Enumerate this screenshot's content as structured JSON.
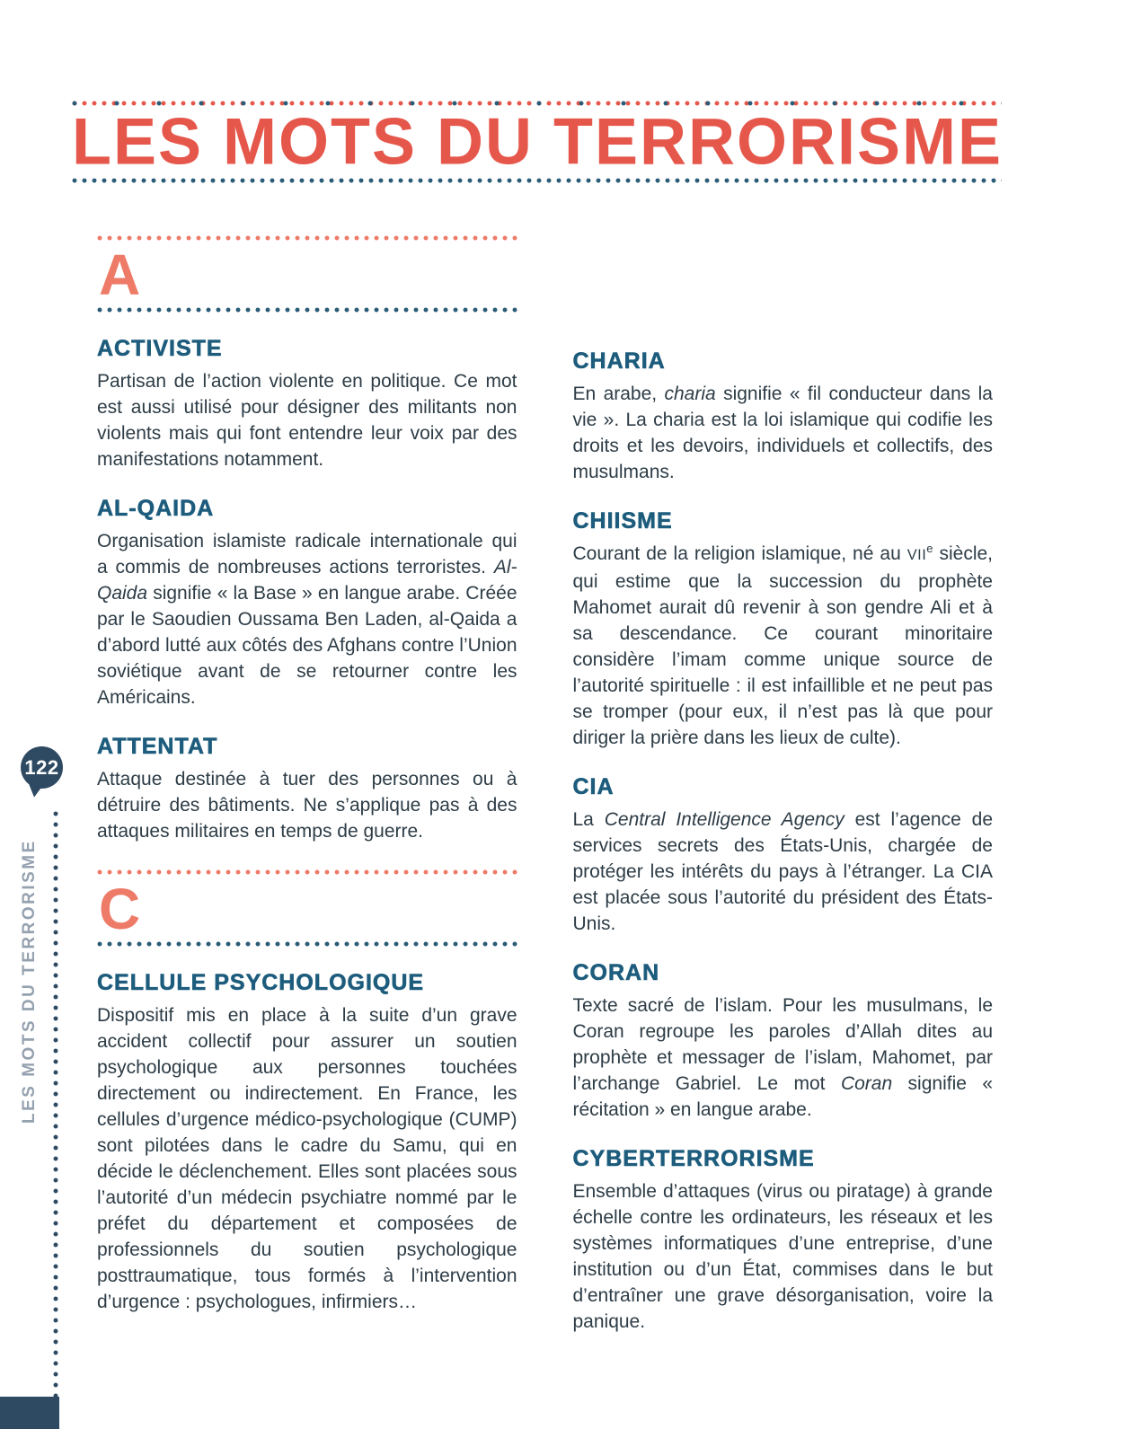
{
  "header": {
    "title": "LES MOTS DU TERRORISME"
  },
  "sidebar": {
    "page_number": "122",
    "label": "LES MOTS DU TERRORISME"
  },
  "colors": {
    "accent_red": "#e6574b",
    "letter_salmon": "#ee7a68",
    "header_teal": "#1d5c7c",
    "body_text": "#2d3c46",
    "navy": "#2e4a63",
    "dot_blue": "#2a5b77",
    "sidebar_text": "#95a1af"
  },
  "glossary": {
    "left": [
      {
        "type": "letter",
        "letter": "A"
      },
      {
        "type": "entry",
        "term": "ACTIVISTE",
        "definition": [
          {
            "t": "Partisan de l’action violente en politique. Ce mot est aussi utilisé pour désigner des militants non violents mais qui font entendre leur voix par des manifestations notamment."
          }
        ]
      },
      {
        "type": "entry",
        "term": "AL-QAIDA",
        "definition": [
          {
            "t": "Organisation islamiste radicale internationale qui a commis de nombreuses actions terroristes. "
          },
          {
            "t": "Al-Qaida",
            "style": "i"
          },
          {
            "t": " signifie « la Base » en langue arabe. Créée par le Saoudien Oussama Ben Laden, al-Qaida a d’abord lutté aux côtés des Afghans contre l’Union soviétique avant de se retourner contre les Américains."
          }
        ]
      },
      {
        "type": "entry",
        "term": "ATTENTAT",
        "definition": [
          {
            "t": "Attaque destinée à tuer des personnes ou à détruire des bâtiments. Ne s’applique pas à des attaques militaires en temps de guerre."
          }
        ]
      },
      {
        "type": "letter",
        "letter": "C"
      },
      {
        "type": "entry",
        "term": "CELLULE PSYCHOLOGIQUE",
        "definition": [
          {
            "t": "Dispositif mis en place à la suite d’un grave accident collectif pour assurer un soutien psychologique aux personnes touchées directement ou indirectement. En France, les cellules d’urgence médico-psychologique (CUMP) sont pilotées dans le cadre du Samu, qui en décide le déclenchement. Elles sont placées sous l’autorité d’un médecin psychiatre nommé par le préfet du département et composées de professionnels du soutien psychologique posttraumatique, tous formés à l’intervention d’urgence : psychologues, infirmiers…"
          }
        ]
      }
    ],
    "right": [
      {
        "type": "entry",
        "term": "CHARIA",
        "definition": [
          {
            "t": "En arabe, "
          },
          {
            "t": "charia",
            "style": "i"
          },
          {
            "t": " signifie « fil conducteur dans la vie ». La charia est la loi islamique qui codifie les droits et les devoirs, individuels et collectifs, des musulmans."
          }
        ]
      },
      {
        "type": "entry",
        "term": "CHIISME",
        "definition": [
          {
            "t": "Courant de la religion islamique, né au "
          },
          {
            "t": "VII",
            "style": "sc"
          },
          {
            "t": "e",
            "style": "sup"
          },
          {
            "t": " siècle, qui estime que la succession du prophète Mahomet aurait dû revenir à son gendre Ali et à sa descendance. Ce courant minoritaire considère l’imam comme unique source de l’autorité spirituelle : il est infaillible et ne peut pas se tromper (pour eux, il n’est pas là que pour diriger la prière dans les lieux de culte)."
          }
        ]
      },
      {
        "type": "entry",
        "term": "CIA",
        "definition": [
          {
            "t": "La "
          },
          {
            "t": "Central Intelligence Agency",
            "style": "i"
          },
          {
            "t": " est l’agence de services secrets des États-Unis, chargée de protéger les intérêts du pays à l’étranger. La CIA est placée sous l’autorité du président des États-Unis."
          }
        ]
      },
      {
        "type": "entry",
        "term": "CORAN",
        "definition": [
          {
            "t": "Texte sacré de l’islam. Pour les musulmans, le Coran regroupe les paroles d’Allah dites au prophète et messager de l’islam, Mahomet, par l’archange Gabriel. Le mot "
          },
          {
            "t": "Coran",
            "style": "i"
          },
          {
            "t": " signifie « récitation » en langue arabe."
          }
        ]
      },
      {
        "type": "entry",
        "term": "CYBERTERRORISME",
        "definition": [
          {
            "t": "Ensemble d’attaques (virus ou piratage) à grande échelle contre les ordinateurs, les réseaux et les systèmes informatiques d’une entreprise, d’une institution ou d’un État, commises dans le but d’entraîner une grave désorganisation, voire la panique."
          }
        ]
      }
    ]
  }
}
